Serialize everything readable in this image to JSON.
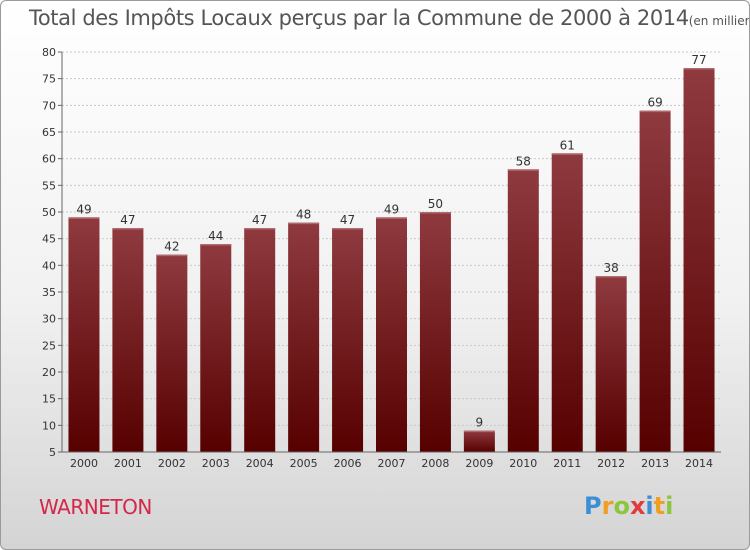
{
  "header": {
    "title": "Total des Impôts Locaux perçus par la Commune de 2000 à 2014",
    "unit": "(en milliers d'€)"
  },
  "footer": {
    "commune": "WARNETON",
    "logo": [
      "P",
      "r",
      "o",
      "x",
      "i",
      "t",
      "i"
    ]
  },
  "colors": {
    "bar_top": "#8f3a3f",
    "bar_bottom": "#560000",
    "commune": "#d5264a",
    "logo": [
      "#3c8fd6",
      "#f0a020",
      "#8cc63f",
      "#e23b3b",
      "#3c8fd6",
      "#f0a020",
      "#8cc63f"
    ]
  },
  "chart_data": {
    "type": "bar",
    "title": "Total des Impôts Locaux perçus par la Commune de 2000 à 2014",
    "ylabel": "(en milliers d'€)",
    "xlabel": "",
    "categories": [
      "2000",
      "2001",
      "2002",
      "2003",
      "2004",
      "2005",
      "2006",
      "2007",
      "2008",
      "2009",
      "2010",
      "2011",
      "2012",
      "2013",
      "2014"
    ],
    "values": [
      49,
      47,
      42,
      44,
      47,
      48,
      47,
      49,
      50,
      9,
      58,
      61,
      38,
      69,
      77
    ],
    "ylim": [
      5,
      80
    ],
    "yticks": [
      5,
      10,
      15,
      20,
      25,
      30,
      35,
      40,
      45,
      50,
      55,
      60,
      65,
      70,
      75,
      80
    ],
    "grid": true
  }
}
